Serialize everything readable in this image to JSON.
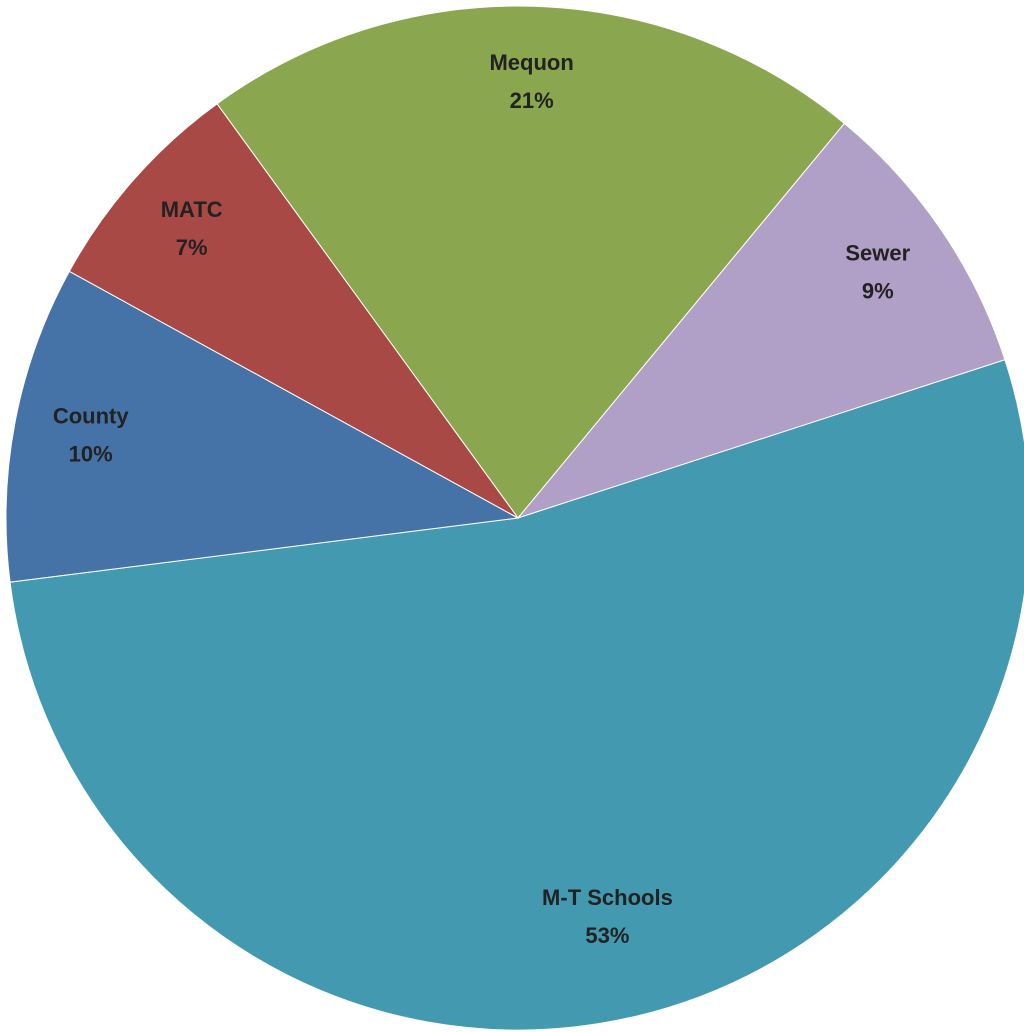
{
  "chart_data": {
    "type": "pie",
    "categories": [
      "Mequon",
      "Sewer",
      "M-T Schools",
      "County",
      "MATC"
    ],
    "values": [
      21,
      9,
      53,
      10,
      7
    ],
    "value_labels": [
      "21%",
      "9%",
      "53%",
      "10%",
      "7%"
    ],
    "colors": [
      "#8aa64e",
      "#b09fc6",
      "#4299b0",
      "#4573a7",
      "#a84946"
    ]
  }
}
